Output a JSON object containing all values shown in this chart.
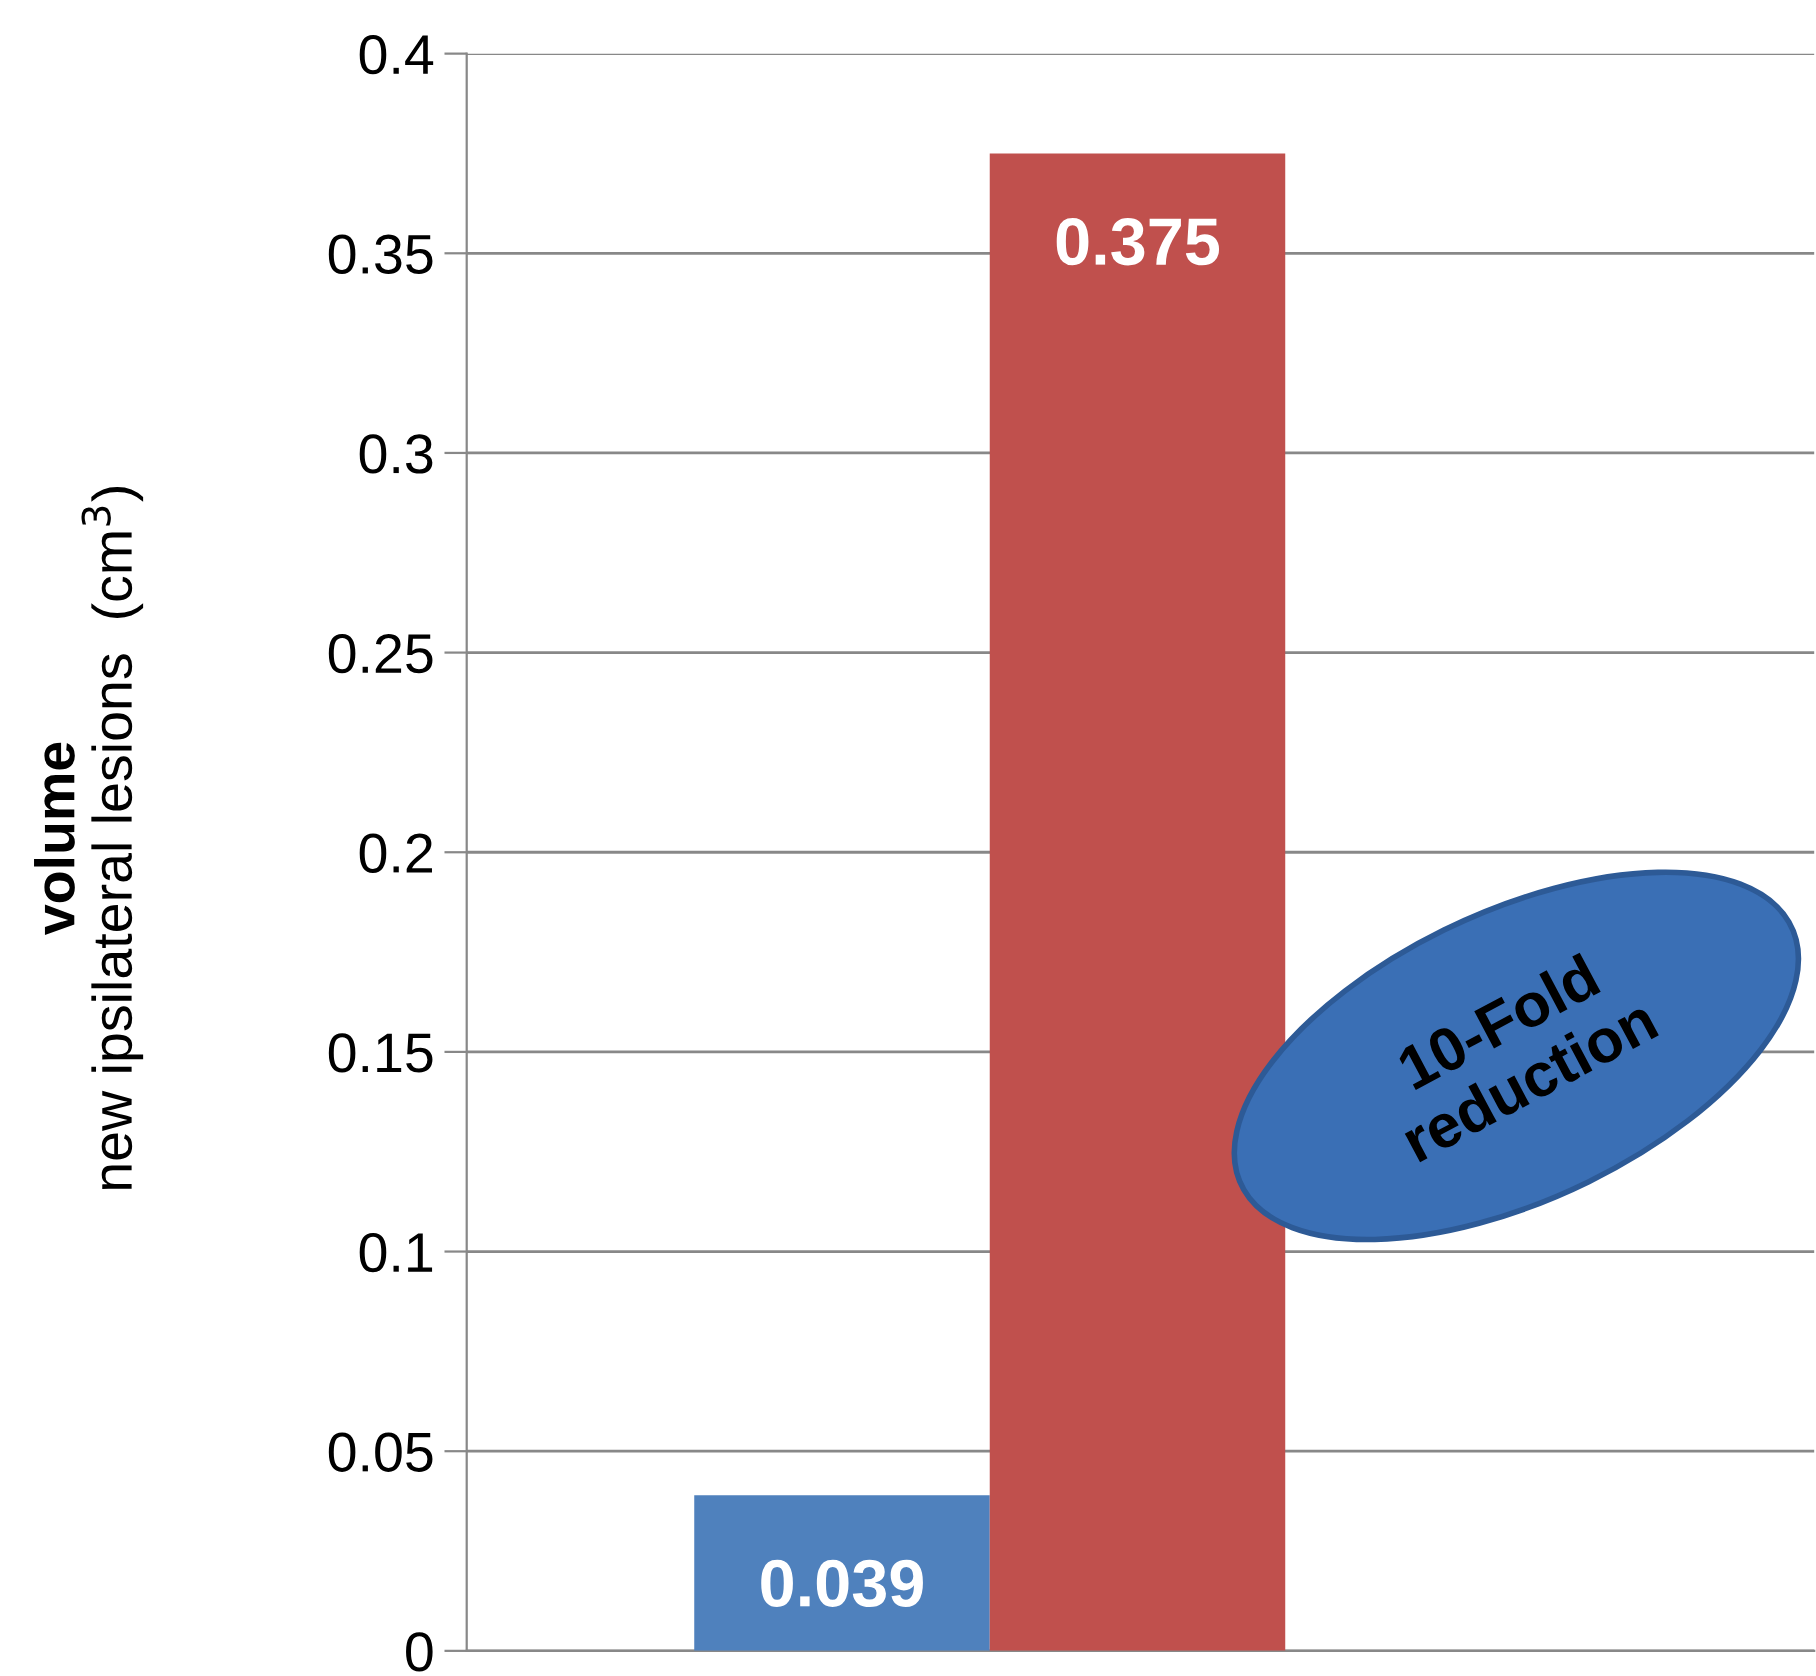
{
  "chart_data": {
    "type": "bar",
    "categories": [
      null
    ],
    "series": [
      {
        "color": "#4f81bd",
        "values": [
          0.039
        ]
      },
      {
        "color": "#c0504d",
        "values": [
          0.375
        ]
      }
    ],
    "ylabel": "volume\nnew ipsilateral lesions  (cm$^{3}$)",
    "ylim": [
      0,
      0.4
    ],
    "yticks": [
      0,
      0.05,
      0.1,
      0.15,
      0.2,
      0.25,
      0.3,
      0.35,
      0.4
    ],
    "grid": "y",
    "data_labels": true,
    "legend": false,
    "annotations": [
      "10-Fold\nreduction"
    ]
  }
}
